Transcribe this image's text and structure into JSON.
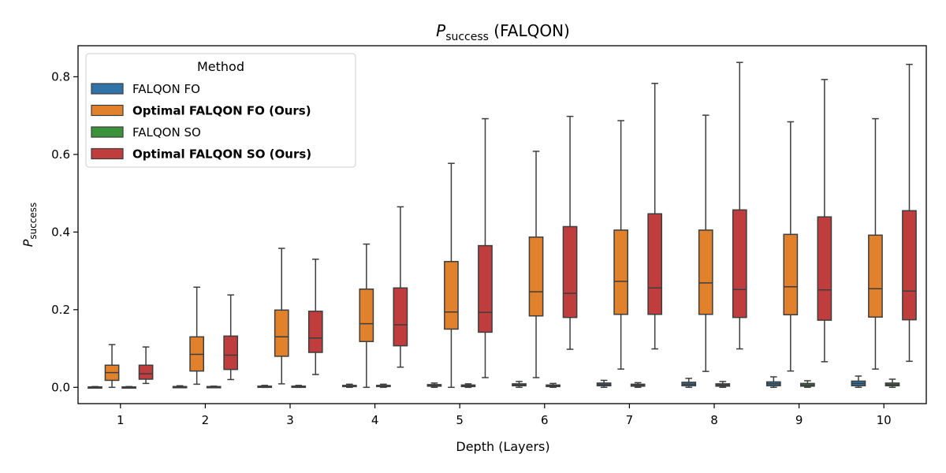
{
  "chart_data": {
    "type": "box",
    "title": {
      "var": "P",
      "sub": "success",
      "suffix": " (FALQON)"
    },
    "xlabel": "Depth (Layers)",
    "ylabel": {
      "var": "P",
      "sub": "success"
    },
    "categories": [
      "1",
      "2",
      "3",
      "4",
      "5",
      "6",
      "7",
      "8",
      "9",
      "10"
    ],
    "yticks": [
      "0.0",
      "0.2",
      "0.4",
      "0.6",
      "0.8"
    ],
    "ylim": [
      -0.042,
      0.88
    ],
    "grid": false,
    "legend": {
      "title": "Method",
      "position": "top-left",
      "entries": [
        {
          "label": "FALQON FO",
          "color": "#2f73a8",
          "bold": false
        },
        {
          "label": "Optimal FALQON FO (Ours)",
          "color": "#e1812c",
          "bold": true
        },
        {
          "label": "FALQON SO",
          "color": "#3a923a",
          "bold": false
        },
        {
          "label": "Optimal FALQON SO (Ours)",
          "color": "#c03d3e",
          "bold": true
        }
      ]
    },
    "series": [
      {
        "name": "FALQON FO",
        "color": "#2f73a8",
        "boxes": [
          {
            "min": 0.0,
            "q1": 0.0,
            "median": 0.0,
            "q3": 0.001,
            "max": 0.002
          },
          {
            "min": 0.0,
            "q1": 0.0,
            "median": 0.001,
            "q3": 0.002,
            "max": 0.004
          },
          {
            "min": 0.0,
            "q1": 0.001,
            "median": 0.002,
            "q3": 0.003,
            "max": 0.005
          },
          {
            "min": 0.0,
            "q1": 0.002,
            "median": 0.003,
            "q3": 0.005,
            "max": 0.008
          },
          {
            "min": 0.0,
            "q1": 0.003,
            "median": 0.005,
            "q3": 0.007,
            "max": 0.011
          },
          {
            "min": 0.0,
            "q1": 0.004,
            "median": 0.006,
            "q3": 0.009,
            "max": 0.015
          },
          {
            "min": 0.0,
            "q1": 0.004,
            "median": 0.007,
            "q3": 0.011,
            "max": 0.018
          },
          {
            "min": 0.0,
            "q1": 0.004,
            "median": 0.008,
            "q3": 0.013,
            "max": 0.023
          },
          {
            "min": 0.0,
            "q1": 0.004,
            "median": 0.009,
            "q3": 0.014,
            "max": 0.027
          },
          {
            "min": 0.0,
            "q1": 0.004,
            "median": 0.01,
            "q3": 0.016,
            "max": 0.029
          }
        ]
      },
      {
        "name": "Optimal FALQON FO (Ours)",
        "color": "#e1812c",
        "boxes": [
          {
            "min": 0.0,
            "q1": 0.018,
            "median": 0.038,
            "q3": 0.057,
            "max": 0.11
          },
          {
            "min": 0.008,
            "q1": 0.042,
            "median": 0.085,
            "q3": 0.13,
            "max": 0.258
          },
          {
            "min": 0.009,
            "q1": 0.08,
            "median": 0.13,
            "q3": 0.199,
            "max": 0.358
          },
          {
            "min": 0.0,
            "q1": 0.118,
            "median": 0.164,
            "q3": 0.253,
            "max": 0.369
          },
          {
            "min": 0.0,
            "q1": 0.15,
            "median": 0.194,
            "q3": 0.324,
            "max": 0.577
          },
          {
            "min": 0.025,
            "q1": 0.184,
            "median": 0.246,
            "q3": 0.387,
            "max": 0.608
          },
          {
            "min": 0.047,
            "q1": 0.188,
            "median": 0.273,
            "q3": 0.405,
            "max": 0.687
          },
          {
            "min": 0.041,
            "q1": 0.188,
            "median": 0.269,
            "q3": 0.405,
            "max": 0.701
          },
          {
            "min": 0.042,
            "q1": 0.187,
            "median": 0.259,
            "q3": 0.394,
            "max": 0.684
          },
          {
            "min": 0.047,
            "q1": 0.181,
            "median": 0.254,
            "q3": 0.392,
            "max": 0.692
          }
        ]
      },
      {
        "name": "FALQON SO",
        "color": "#3a923a",
        "boxes": [
          {
            "min": 0.0,
            "q1": 0.0,
            "median": 0.0,
            "q3": 0.001,
            "max": 0.002
          },
          {
            "min": 0.0,
            "q1": 0.0,
            "median": 0.001,
            "q3": 0.002,
            "max": 0.003
          },
          {
            "min": 0.0,
            "q1": 0.001,
            "median": 0.002,
            "q3": 0.003,
            "max": 0.005
          },
          {
            "min": 0.0,
            "q1": 0.002,
            "median": 0.003,
            "q3": 0.005,
            "max": 0.008
          },
          {
            "min": 0.0,
            "q1": 0.002,
            "median": 0.004,
            "q3": 0.006,
            "max": 0.009
          },
          {
            "min": 0.0,
            "q1": 0.002,
            "median": 0.004,
            "q3": 0.006,
            "max": 0.01
          },
          {
            "min": 0.0,
            "q1": 0.003,
            "median": 0.005,
            "q3": 0.008,
            "max": 0.012
          },
          {
            "min": 0.0,
            "q1": 0.003,
            "median": 0.006,
            "q3": 0.009,
            "max": 0.015
          },
          {
            "min": 0.0,
            "q1": 0.003,
            "median": 0.006,
            "q3": 0.01,
            "max": 0.017
          },
          {
            "min": 0.0,
            "q1": 0.004,
            "median": 0.007,
            "q3": 0.011,
            "max": 0.021
          }
        ]
      },
      {
        "name": "Optimal FALQON SO (Ours)",
        "color": "#c03d3e",
        "boxes": [
          {
            "min": 0.01,
            "q1": 0.021,
            "median": 0.035,
            "q3": 0.057,
            "max": 0.104
          },
          {
            "min": 0.02,
            "q1": 0.046,
            "median": 0.083,
            "q3": 0.132,
            "max": 0.238
          },
          {
            "min": 0.033,
            "q1": 0.09,
            "median": 0.127,
            "q3": 0.196,
            "max": 0.33
          },
          {
            "min": 0.052,
            "q1": 0.107,
            "median": 0.161,
            "q3": 0.256,
            "max": 0.465
          },
          {
            "min": 0.025,
            "q1": 0.142,
            "median": 0.193,
            "q3": 0.365,
            "max": 0.692
          },
          {
            "min": 0.098,
            "q1": 0.18,
            "median": 0.242,
            "q3": 0.414,
            "max": 0.698
          },
          {
            "min": 0.099,
            "q1": 0.188,
            "median": 0.256,
            "q3": 0.447,
            "max": 0.783
          },
          {
            "min": 0.099,
            "q1": 0.18,
            "median": 0.252,
            "q3": 0.457,
            "max": 0.837
          },
          {
            "min": 0.066,
            "q1": 0.173,
            "median": 0.251,
            "q3": 0.439,
            "max": 0.793
          },
          {
            "min": 0.067,
            "q1": 0.174,
            "median": 0.248,
            "q3": 0.455,
            "max": 0.832
          }
        ]
      }
    ]
  }
}
